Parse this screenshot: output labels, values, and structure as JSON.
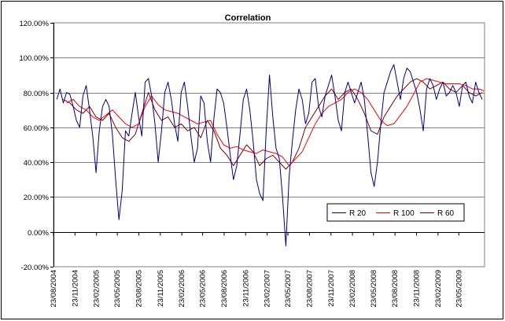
{
  "chart_data": {
    "type": "line",
    "title": "Correlation",
    "xlabel": "",
    "ylabel": "",
    "ylim": [
      -0.2,
      1.2
    ],
    "yticks": [
      -0.2,
      0.0,
      0.2,
      0.4,
      0.6,
      0.8,
      1.0,
      1.2
    ],
    "ytick_labels": [
      "-20.00%",
      "0.00%",
      "20.00%",
      "40.00%",
      "60.00%",
      "80.00%",
      "100.00%",
      "120.00%"
    ],
    "x_tick_labels": [
      "23/08/2004",
      "23/11/2004",
      "23/02/2005",
      "23/05/2005",
      "23/08/2005",
      "23/11/2005",
      "23/02/2006",
      "23/05/2006",
      "23/08/2006",
      "23/11/2006",
      "23/02/2007",
      "23/05/2007",
      "23/08/2007",
      "23/11/2007",
      "23/02/2008",
      "23/05/2008",
      "23/08/2008",
      "23/11/2008",
      "23/02/2009",
      "23/05/2009"
    ],
    "x_range": [
      "23/08/2004",
      "10/09/2009"
    ],
    "grid": "horizontal",
    "legend_position": "bottom-right",
    "series": [
      {
        "name": "R 20",
        "color": "#000080",
        "x": [
          "2004-09-06",
          "2004-09-20",
          "2004-10-04",
          "2004-10-18",
          "2004-11-01",
          "2004-11-15",
          "2004-11-29",
          "2004-12-13",
          "2004-12-27",
          "2005-01-10",
          "2005-01-24",
          "2005-02-07",
          "2005-02-21",
          "2005-03-07",
          "2005-03-21",
          "2005-04-04",
          "2005-04-18",
          "2005-05-02",
          "2005-05-16",
          "2005-05-30",
          "2005-06-13",
          "2005-06-27",
          "2005-07-11",
          "2005-07-25",
          "2005-08-08",
          "2005-08-22",
          "2005-09-05",
          "2005-09-19",
          "2005-10-03",
          "2005-10-17",
          "2005-10-31",
          "2005-11-14",
          "2005-11-28",
          "2005-12-12",
          "2005-12-26",
          "2006-01-09",
          "2006-01-23",
          "2006-02-06",
          "2006-02-20",
          "2006-03-06",
          "2006-03-20",
          "2006-04-03",
          "2006-04-17",
          "2006-05-01",
          "2006-05-15",
          "2006-05-29",
          "2006-06-12",
          "2006-06-26",
          "2006-07-10",
          "2006-07-24",
          "2006-08-07",
          "2006-08-21",
          "2006-09-04",
          "2006-09-18",
          "2006-10-02",
          "2006-10-16",
          "2006-10-30",
          "2006-11-13",
          "2006-11-27",
          "2006-12-11",
          "2006-12-25",
          "2007-01-08",
          "2007-01-22",
          "2007-02-05",
          "2007-02-19",
          "2007-03-05",
          "2007-03-19",
          "2007-04-02",
          "2007-04-16",
          "2007-04-30",
          "2007-05-14",
          "2007-05-28",
          "2007-06-11",
          "2007-06-25",
          "2007-07-09",
          "2007-07-23",
          "2007-08-06",
          "2007-08-20",
          "2007-09-03",
          "2007-09-17",
          "2007-10-01",
          "2007-10-15",
          "2007-10-29",
          "2007-11-12",
          "2007-11-26",
          "2007-12-10",
          "2007-12-24",
          "2008-01-07",
          "2008-01-21",
          "2008-02-04",
          "2008-02-18",
          "2008-03-03",
          "2008-03-17",
          "2008-03-31",
          "2008-04-14",
          "2008-04-28",
          "2008-05-12",
          "2008-05-26",
          "2008-06-09",
          "2008-06-23",
          "2008-07-07",
          "2008-07-21",
          "2008-08-04",
          "2008-08-18",
          "2008-09-01",
          "2008-09-15",
          "2008-09-29",
          "2008-10-13",
          "2008-10-27",
          "2008-11-10",
          "2008-11-24",
          "2008-12-08",
          "2008-12-22",
          "2009-01-05",
          "2009-01-19",
          "2009-02-02",
          "2009-02-16",
          "2009-03-02",
          "2009-03-16",
          "2009-03-30",
          "2009-04-13",
          "2009-04-27",
          "2009-05-11",
          "2009-05-25",
          "2009-06-08",
          "2009-06-22",
          "2009-07-06",
          "2009-07-20",
          "2009-08-03",
          "2009-08-17",
          "2009-08-31"
        ],
        "values": [
          0.76,
          0.82,
          0.74,
          0.8,
          0.79,
          0.72,
          0.64,
          0.6,
          0.78,
          0.84,
          0.7,
          0.55,
          0.34,
          0.58,
          0.72,
          0.76,
          0.72,
          0.56,
          0.3,
          0.07,
          0.24,
          0.58,
          0.55,
          0.68,
          0.8,
          0.66,
          0.55,
          0.86,
          0.88,
          0.78,
          0.62,
          0.4,
          0.58,
          0.8,
          0.86,
          0.76,
          0.62,
          0.52,
          0.8,
          0.86,
          0.72,
          0.55,
          0.4,
          0.48,
          0.78,
          0.74,
          0.52,
          0.4,
          0.65,
          0.82,
          0.8,
          0.74,
          0.6,
          0.44,
          0.3,
          0.38,
          0.56,
          0.76,
          0.82,
          0.7,
          0.52,
          0.3,
          0.22,
          0.18,
          0.58,
          0.9,
          0.66,
          0.48,
          0.42,
          0.2,
          -0.08,
          0.32,
          0.52,
          0.7,
          0.82,
          0.76,
          0.62,
          0.68,
          0.86,
          0.88,
          0.72,
          0.66,
          0.78,
          0.84,
          0.9,
          0.78,
          0.64,
          0.58,
          0.8,
          0.86,
          0.8,
          0.74,
          0.8,
          0.86,
          0.76,
          0.56,
          0.34,
          0.26,
          0.4,
          0.62,
          0.8,
          0.86,
          0.92,
          0.96,
          0.86,
          0.76,
          0.88,
          0.94,
          0.92,
          0.86,
          0.8,
          0.7,
          0.58,
          0.82,
          0.88,
          0.84,
          0.76,
          0.82,
          0.86,
          0.78,
          0.8,
          0.84,
          0.8,
          0.72,
          0.84,
          0.86,
          0.78,
          0.74,
          0.86,
          0.8,
          0.76
        ]
      },
      {
        "name": "R 100",
        "color": "#ff0000",
        "x": [
          "2004-10-18",
          "2004-11-15",
          "2004-12-13",
          "2005-01-10",
          "2005-02-07",
          "2005-03-07",
          "2005-04-04",
          "2005-05-02",
          "2005-05-30",
          "2005-06-27",
          "2005-07-25",
          "2005-08-22",
          "2005-09-19",
          "2005-10-17",
          "2005-11-14",
          "2005-12-12",
          "2006-01-09",
          "2006-02-06",
          "2006-03-06",
          "2006-04-03",
          "2006-05-01",
          "2006-05-29",
          "2006-06-26",
          "2006-07-24",
          "2006-08-21",
          "2006-09-18",
          "2006-10-16",
          "2006-11-13",
          "2006-12-11",
          "2007-01-08",
          "2007-02-05",
          "2007-03-05",
          "2007-04-02",
          "2007-04-30",
          "2007-05-28",
          "2007-06-25",
          "2007-07-23",
          "2007-08-20",
          "2007-09-17",
          "2007-10-15",
          "2007-11-12",
          "2007-12-10",
          "2008-01-07",
          "2008-02-04",
          "2008-03-03",
          "2008-03-31",
          "2008-04-28",
          "2008-05-26",
          "2008-06-23",
          "2008-07-21",
          "2008-08-18",
          "2008-09-15",
          "2008-10-13",
          "2008-11-10",
          "2008-12-08",
          "2009-01-05",
          "2009-02-02",
          "2009-03-02",
          "2009-03-30",
          "2009-04-27",
          "2009-05-25",
          "2009-06-22",
          "2009-07-20",
          "2009-08-17",
          "2009-09-07"
        ],
        "values": [
          0.74,
          0.76,
          0.72,
          0.7,
          0.66,
          0.64,
          0.67,
          0.7,
          0.66,
          0.62,
          0.6,
          0.62,
          0.72,
          0.78,
          0.73,
          0.7,
          0.69,
          0.68,
          0.66,
          0.64,
          0.62,
          0.63,
          0.64,
          0.56,
          0.5,
          0.48,
          0.49,
          0.47,
          0.46,
          0.45,
          0.47,
          0.46,
          0.45,
          0.43,
          0.38,
          0.42,
          0.46,
          0.54,
          0.62,
          0.68,
          0.72,
          0.74,
          0.76,
          0.8,
          0.82,
          0.8,
          0.76,
          0.7,
          0.64,
          0.61,
          0.62,
          0.67,
          0.72,
          0.79,
          0.86,
          0.88,
          0.87,
          0.86,
          0.85,
          0.85,
          0.85,
          0.84,
          0.82,
          0.82,
          0.81
        ]
      },
      {
        "name": "R 60",
        "color": "#800000",
        "x": [
          "2004-10-04",
          "2004-11-01",
          "2004-11-29",
          "2004-12-27",
          "2005-01-24",
          "2005-02-21",
          "2005-03-21",
          "2005-04-18",
          "2005-05-16",
          "2005-06-13",
          "2005-07-11",
          "2005-08-08",
          "2005-09-05",
          "2005-10-03",
          "2005-10-31",
          "2005-11-28",
          "2005-12-26",
          "2006-01-23",
          "2006-02-20",
          "2006-03-20",
          "2006-04-17",
          "2006-05-15",
          "2006-06-12",
          "2006-07-10",
          "2006-08-07",
          "2006-09-04",
          "2006-10-02",
          "2006-10-30",
          "2006-11-27",
          "2006-12-25",
          "2007-01-22",
          "2007-02-19",
          "2007-03-19",
          "2007-04-16",
          "2007-05-14",
          "2007-06-11",
          "2007-07-09",
          "2007-08-06",
          "2007-09-03",
          "2007-10-01",
          "2007-10-29",
          "2007-11-26",
          "2007-12-24",
          "2008-01-21",
          "2008-02-18",
          "2008-03-17",
          "2008-04-14",
          "2008-05-12",
          "2008-06-09",
          "2008-07-07",
          "2008-08-04",
          "2008-09-01",
          "2008-09-29",
          "2008-10-27",
          "2008-11-24",
          "2008-12-22",
          "2009-01-19",
          "2009-02-16",
          "2009-03-16",
          "2009-04-13",
          "2009-05-11",
          "2009-06-08",
          "2009-07-06",
          "2009-08-03",
          "2009-08-31"
        ],
        "values": [
          0.76,
          0.74,
          0.7,
          0.68,
          0.72,
          0.66,
          0.64,
          0.68,
          0.6,
          0.54,
          0.52,
          0.56,
          0.68,
          0.8,
          0.7,
          0.64,
          0.66,
          0.6,
          0.62,
          0.58,
          0.6,
          0.54,
          0.64,
          0.58,
          0.48,
          0.44,
          0.38,
          0.44,
          0.5,
          0.46,
          0.38,
          0.42,
          0.44,
          0.4,
          0.36,
          0.4,
          0.48,
          0.6,
          0.66,
          0.72,
          0.78,
          0.82,
          0.76,
          0.8,
          0.82,
          0.76,
          0.68,
          0.58,
          0.56,
          0.66,
          0.72,
          0.78,
          0.82,
          0.86,
          0.88,
          0.86,
          0.82,
          0.84,
          0.86,
          0.82,
          0.8,
          0.84,
          0.8,
          0.78,
          0.8
        ]
      }
    ]
  }
}
